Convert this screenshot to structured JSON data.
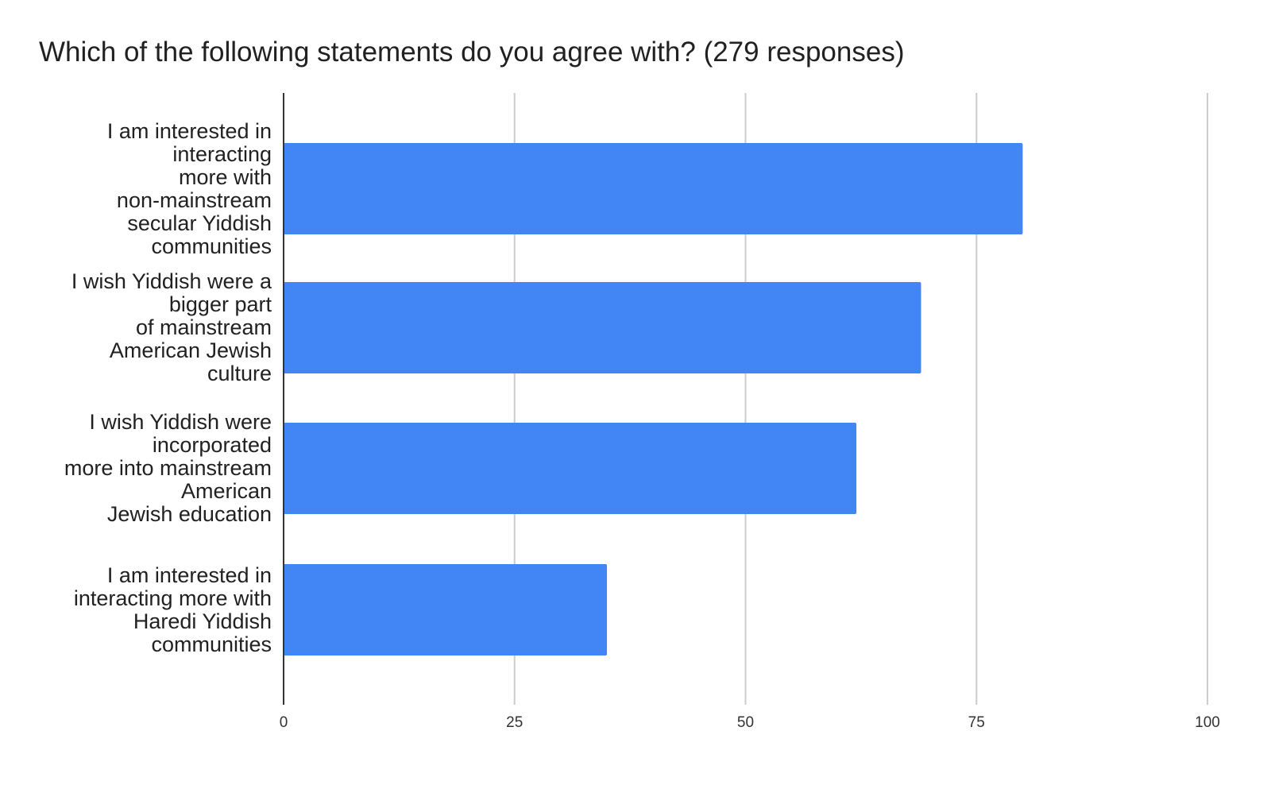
{
  "chart_data": {
    "type": "bar",
    "orientation": "horizontal",
    "title": "Which of the following statements do you agree with? (279 responses)",
    "xlabel": "",
    "ylabel": "",
    "categories": [
      [
        "I am interested in",
        "interacting",
        "more with",
        "non-mainstream",
        "secular Yiddish",
        "communities"
      ],
      [
        "I wish Yiddish were a",
        "bigger part",
        "of mainstream",
        "American Jewish",
        "culture"
      ],
      [
        "I wish Yiddish were",
        "incorporated",
        "more into mainstream",
        "American",
        "Jewish education"
      ],
      [
        "I am interested in",
        "interacting more with",
        "Haredi Yiddish",
        "communities"
      ]
    ],
    "values": [
      80,
      69,
      62,
      35
    ],
    "xlim": [
      0,
      100
    ],
    "xticks": [
      "0",
      "25",
      "50",
      "75",
      "100"
    ],
    "grid": true,
    "legend": "none",
    "colors": {
      "bar": "#4285f4",
      "grid": "#cccccc",
      "axis": "#333333"
    }
  }
}
